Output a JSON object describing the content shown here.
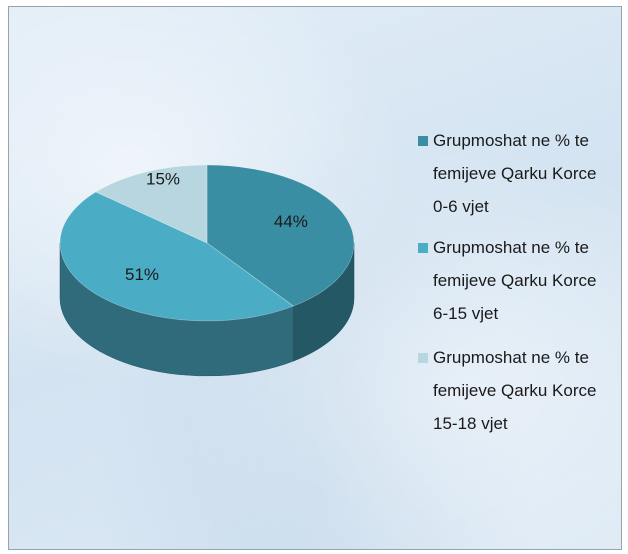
{
  "chart_data": {
    "type": "pie",
    "categories": [
      "Grupmoshat ne % te femijeve Qarku Korce 0-6 vjet",
      "Grupmoshat ne % te femijeve Qarku Korce 6-15 vjet",
      "Grupmoshat ne % te femijeve Qarku Korce 15-18 vjet"
    ],
    "values": [
      44,
      51,
      15
    ],
    "value_labels": [
      "44%",
      "51%",
      "15%"
    ],
    "colors": [
      "#3a8ea3",
      "#4bacc6",
      "#b7d6df"
    ],
    "legend": "right",
    "three_d": true
  }
}
